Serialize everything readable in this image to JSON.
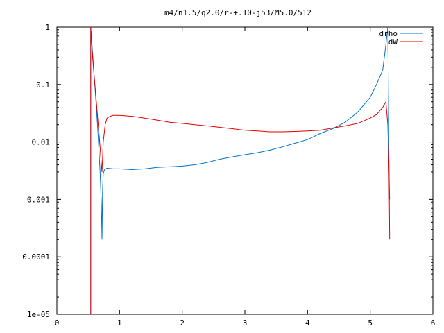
{
  "chart_data": {
    "type": "line",
    "title": "m4/n1.5/q2.0/r-+.10-j53/M5.0/512",
    "xlabel": "",
    "ylabel": "",
    "xlim": [
      0,
      6
    ],
    "ylim": [
      1e-05,
      1
    ],
    "y_scale": "log",
    "grid": false,
    "legend_position": "top-right",
    "x_ticks": [
      {
        "value": 0,
        "label": "0"
      },
      {
        "value": 1,
        "label": "1"
      },
      {
        "value": 2,
        "label": "2"
      },
      {
        "value": 3,
        "label": "3"
      },
      {
        "value": 4,
        "label": "4"
      },
      {
        "value": 5,
        "label": "5"
      },
      {
        "value": 6,
        "label": "6"
      }
    ],
    "y_ticks": [
      {
        "value": 1,
        "label": "1"
      },
      {
        "value": 0.1,
        "label": "0.1"
      },
      {
        "value": 0.01,
        "label": "0.01"
      },
      {
        "value": 0.001,
        "label": "0.001"
      },
      {
        "value": 0.0001,
        "label": "0.0001"
      },
      {
        "value": 1e-05,
        "label": "1e-05"
      }
    ],
    "series": [
      {
        "name": "drho",
        "color": "#0072d0",
        "x": [
          0.54,
          0.55,
          0.57,
          0.6,
          0.63,
          0.66,
          0.69,
          0.71,
          0.72,
          0.73,
          0.74,
          0.76,
          0.8,
          0.9,
          1.0,
          1.2,
          1.4,
          1.6,
          1.8,
          2.0,
          2.2,
          2.4,
          2.6,
          2.8,
          3.0,
          3.2,
          3.4,
          3.6,
          3.8,
          4.0,
          4.2,
          4.4,
          4.6,
          4.8,
          5.0,
          5.1,
          5.2,
          5.25,
          5.28,
          5.3,
          5.31
        ],
        "y": [
          1.0,
          0.7,
          0.35,
          0.12,
          0.04,
          0.012,
          0.003,
          0.0008,
          0.0002,
          0.0015,
          0.0028,
          0.0033,
          0.0035,
          0.0034,
          0.0034,
          0.0033,
          0.0034,
          0.0036,
          0.0037,
          0.0038,
          0.004,
          0.0044,
          0.005,
          0.0055,
          0.006,
          0.0065,
          0.0072,
          0.0082,
          0.0095,
          0.011,
          0.014,
          0.017,
          0.022,
          0.033,
          0.06,
          0.1,
          0.18,
          0.5,
          1.0,
          0.003,
          0.001
        ]
      },
      {
        "name": "dW",
        "color": "#e00000",
        "x": [
          0.54,
          0.55,
          0.57,
          0.6,
          0.63,
          0.66,
          0.69,
          0.71,
          0.72,
          0.74,
          0.77,
          0.8,
          0.85,
          0.9,
          1.0,
          1.2,
          1.4,
          1.6,
          1.8,
          2.0,
          2.2,
          2.4,
          2.6,
          2.8,
          3.0,
          3.2,
          3.4,
          3.6,
          3.8,
          4.0,
          4.2,
          4.4,
          4.6,
          4.8,
          5.0,
          5.1,
          5.2,
          5.25,
          5.28,
          5.3,
          5.31
        ],
        "y": [
          1.0,
          0.6,
          0.3,
          0.12,
          0.05,
          0.02,
          0.008,
          0.004,
          0.003,
          0.01,
          0.02,
          0.026,
          0.028,
          0.029,
          0.029,
          0.028,
          0.026,
          0.024,
          0.022,
          0.021,
          0.02,
          0.019,
          0.018,
          0.017,
          0.016,
          0.0155,
          0.015,
          0.015,
          0.0152,
          0.0155,
          0.016,
          0.0175,
          0.019,
          0.021,
          0.026,
          0.03,
          0.04,
          0.05,
          0.02,
          0.003,
          0.0002
        ]
      }
    ]
  }
}
